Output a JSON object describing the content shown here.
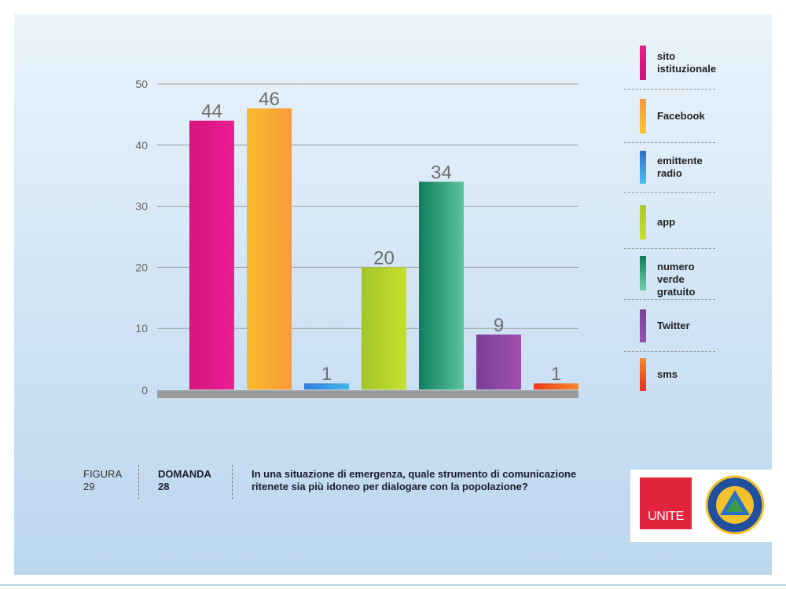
{
  "chart_data": {
    "type": "bar",
    "categories": [
      "sito istituzionale",
      "Facebook",
      "emittente radio",
      "app",
      "numero verde gratuito",
      "Twitter",
      "sms"
    ],
    "values": [
      44,
      46,
      1,
      20,
      34,
      9,
      1
    ],
    "data_labels": [
      "44",
      "46",
      "1",
      "20",
      "34",
      "9",
      "1"
    ],
    "ylim": [
      0,
      50
    ],
    "yticks": [
      "0",
      "10",
      "20",
      "30",
      "40",
      "50"
    ],
    "grid": true,
    "legend_position": "right",
    "colors": [
      [
        "#d6157f",
        "#ec1e93"
      ],
      [
        "#f7ba2a",
        "#f99a3a"
      ],
      [
        "#2e7ed8",
        "#48b4ea"
      ],
      [
        "#a5c42a",
        "#c4e02a"
      ],
      [
        "#0f7d5c",
        "#5cc49e"
      ],
      [
        "#7a3e98",
        "#a050b0"
      ],
      [
        "#ee3a1e",
        "#f58a2a"
      ]
    ]
  },
  "legend": [
    {
      "label": "sito\nistituzionale",
      "color_top": "#e91e8c",
      "color_bottom": "#c9127a"
    },
    {
      "label": "Facebook",
      "color_top": "#f99a3a",
      "color_bottom": "#fbc52a"
    },
    {
      "label": "emittente\nradio",
      "color_top": "#2d6fd0",
      "color_bottom": "#4cc0ee"
    },
    {
      "label": "app",
      "color_top": "#a9c82c",
      "color_bottom": "#c8e02a"
    },
    {
      "label": "numero\nverde gratuito",
      "color_top": "#0f7d5c",
      "color_bottom": "#6fd0ac"
    },
    {
      "label": "Twitter",
      "color_top": "#7a3e98",
      "color_bottom": "#9a52b2"
    },
    {
      "label": "sms",
      "color_top": "#f58a2a",
      "color_bottom": "#ec2e1e"
    }
  ],
  "caption": {
    "figura": "FIGURA\n29",
    "domanda": "DOMANDA\n28",
    "question": "In una situazione di emergenza, quale strumento di comunicazione ritenete sia più idoneo per dialogare con la popolazione?"
  },
  "logos": {
    "unite": "UNITE"
  }
}
